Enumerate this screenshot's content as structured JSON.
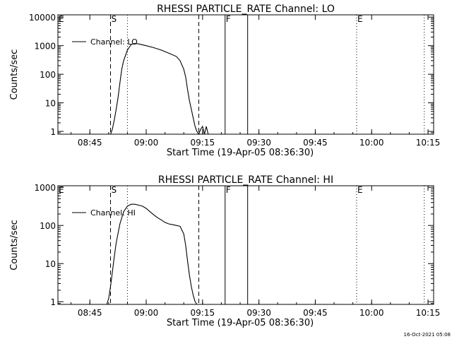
{
  "footer_timestamp": "16-Oct-2021 05:08",
  "chart_data": [
    {
      "type": "line",
      "title": "RHESSI PARTICLE_RATE Channel: LO",
      "xlabel": "Start Time (19-Apr-05 08:36:30)",
      "ylabel": "Counts/sec",
      "y_scale": "log",
      "ylim": [
        0.8,
        12000
      ],
      "xlim": [
        "08:36:30",
        "10:16:30"
      ],
      "x_ticks": [
        "08:45",
        "09:00",
        "09:15",
        "09:30",
        "09:45",
        "10:00",
        "10:15"
      ],
      "y_ticks": [
        {
          "value": 1,
          "label": "1"
        },
        {
          "value": 10,
          "label": "10"
        },
        {
          "value": 100,
          "label": "100"
        },
        {
          "value": 1000,
          "label": "1000"
        },
        {
          "value": 10000,
          "label": "10000"
        }
      ],
      "legend": {
        "label": "Channel: LO",
        "placement": "top-left"
      },
      "markers": [
        {
          "time": "08:36:30",
          "style": "dotted",
          "label": "E"
        },
        {
          "time": "08:50:30",
          "style": "dashed",
          "label": "S"
        },
        {
          "time": "08:55:00",
          "style": "dotted",
          "label": ""
        },
        {
          "time": "09:14:00",
          "style": "dashed",
          "label": ""
        },
        {
          "time": "09:21:00",
          "style": "solid",
          "label": "F"
        },
        {
          "time": "09:27:00",
          "style": "solid",
          "label": ""
        },
        {
          "time": "09:56:00",
          "style": "dotted",
          "label": "E"
        },
        {
          "time": "10:14:00",
          "style": "dotted",
          "label": ""
        }
      ],
      "series": [
        {
          "x": [
            "08:50:30",
            "08:51:00",
            "08:51:30",
            "08:52:00",
            "08:52:30",
            "08:53:00",
            "08:53:30",
            "08:54:00",
            "08:55:00",
            "08:56:00",
            "08:57:00",
            "08:58:00",
            "09:00:00",
            "09:02:00",
            "09:04:00",
            "09:06:00",
            "09:08:00",
            "09:09:00",
            "09:10:00",
            "09:10:30",
            "09:11:00",
            "09:11:30",
            "09:12:00",
            "09:12:30",
            "09:13:00",
            "09:13:30",
            "09:14:00",
            "09:14:30",
            "09:15:00",
            "09:15:30",
            "09:16:00",
            "09:16:30"
          ],
          "values": [
            0.8,
            1.2,
            2.5,
            6,
            15,
            50,
            150,
            300,
            700,
            1100,
            1200,
            1150,
            1000,
            850,
            700,
            550,
            420,
            300,
            150,
            80,
            30,
            12,
            6,
            3,
            1.5,
            1,
            0.8,
            1.2,
            1.5,
            0.8,
            1.5,
            0.8
          ]
        }
      ]
    },
    {
      "type": "line",
      "title": "RHESSI PARTICLE_RATE Channel: HI",
      "xlabel": "Start Time (19-Apr-05 08:36:30)",
      "ylabel": "Counts/sec",
      "y_scale": "log",
      "ylim": [
        0.85,
        1100
      ],
      "xlim": [
        "08:36:30",
        "10:16:30"
      ],
      "x_ticks": [
        "08:45",
        "09:00",
        "09:15",
        "09:30",
        "09:45",
        "10:00",
        "10:15"
      ],
      "y_ticks": [
        {
          "value": 1,
          "label": "1"
        },
        {
          "value": 10,
          "label": "10"
        },
        {
          "value": 100,
          "label": "100"
        },
        {
          "value": 1000,
          "label": "1000"
        }
      ],
      "legend": {
        "label": "Channel: HI",
        "placement": "top-left"
      },
      "markers": [
        {
          "time": "08:36:30",
          "style": "dotted",
          "label": "E"
        },
        {
          "time": "08:50:30",
          "style": "dashed",
          "label": "S"
        },
        {
          "time": "08:55:00",
          "style": "dotted",
          "label": ""
        },
        {
          "time": "09:14:00",
          "style": "dashed",
          "label": ""
        },
        {
          "time": "09:21:00",
          "style": "solid",
          "label": "F"
        },
        {
          "time": "09:27:00",
          "style": "solid",
          "label": ""
        },
        {
          "time": "09:56:00",
          "style": "dotted",
          "label": "E"
        },
        {
          "time": "10:14:00",
          "style": "dotted",
          "label": ""
        }
      ],
      "series": [
        {
          "x": [
            "08:49:30",
            "08:50:00",
            "08:50:30",
            "08:51:00",
            "08:51:30",
            "08:52:00",
            "08:53:00",
            "08:54:00",
            "08:55:00",
            "08:56:00",
            "08:57:00",
            "08:58:00",
            "08:59:00",
            "09:00:00",
            "09:01:00",
            "09:02:00",
            "09:03:00",
            "09:04:00",
            "09:05:00",
            "09:06:00",
            "09:07:00",
            "09:08:00",
            "09:09:00",
            "09:10:00",
            "09:10:30",
            "09:11:00",
            "09:11:30",
            "09:12:00",
            "09:12:30",
            "09:13:00",
            "09:13:30"
          ],
          "values": [
            0.85,
            1.2,
            2.5,
            6,
            15,
            35,
            110,
            230,
            320,
            360,
            360,
            340,
            320,
            280,
            230,
            190,
            160,
            140,
            120,
            110,
            105,
            100,
            95,
            60,
            30,
            12,
            5,
            2.5,
            1.5,
            1,
            0.85
          ]
        }
      ]
    }
  ]
}
